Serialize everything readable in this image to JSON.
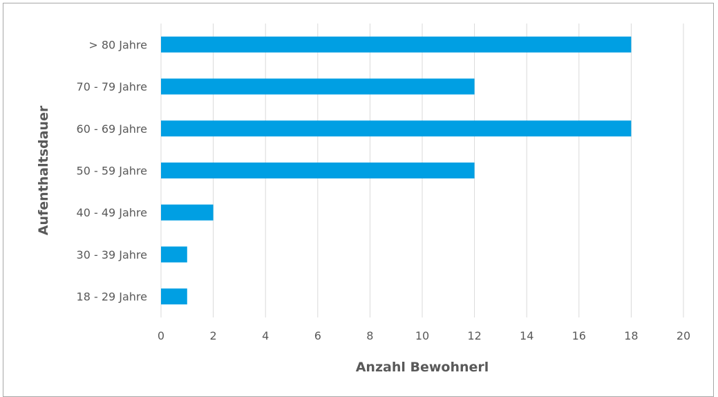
{
  "chart_data": {
    "type": "bar",
    "orientation": "horizontal",
    "title": "",
    "xlabel": "Anzahl Bewohnerl",
    "ylabel": "Aufenthaltsdauer",
    "categories": [
      "18 - 29 Jahre",
      "30 - 39 Jahre",
      "40 - 49 Jahre",
      "50 - 59 Jahre",
      "60 - 69 Jahre",
      "70 - 79 Jahre",
      "> 80 Jahre"
    ],
    "values": [
      1,
      1,
      2,
      12,
      18,
      12,
      18
    ],
    "xlim": [
      0,
      20
    ],
    "x_ticks": [
      "0",
      "2",
      "4",
      "6",
      "8",
      "10",
      "12",
      "14",
      "16",
      "18",
      "20"
    ],
    "grid": true,
    "legend": "none",
    "bar_color": "#009fe3",
    "grid_color": "#d9d9d9",
    "text_color": "#595959"
  }
}
